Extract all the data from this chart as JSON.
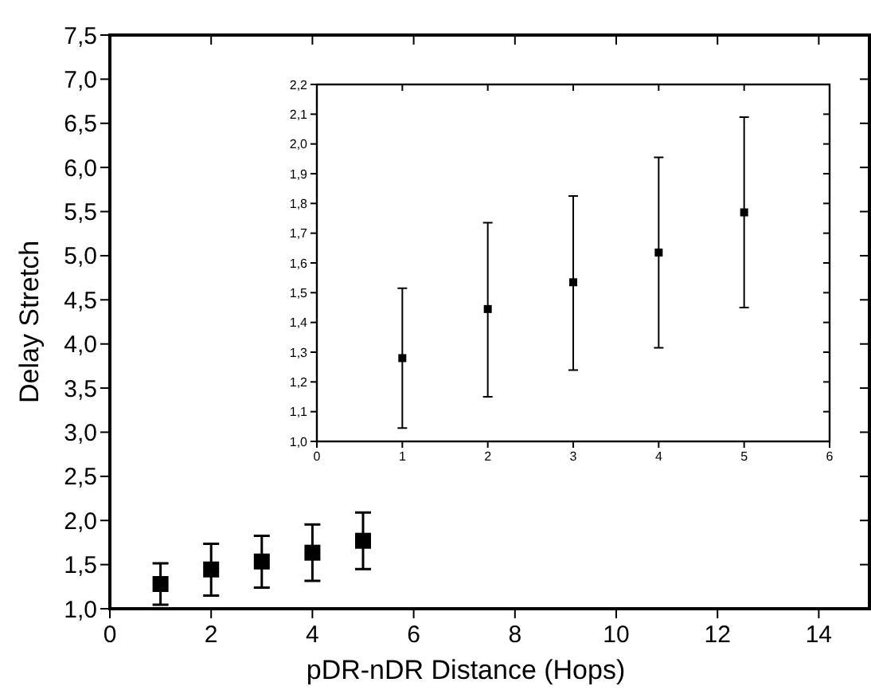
{
  "chart_data": [
    {
      "type": "scatter",
      "xlabel": "pDR-nDR Distance (Hops)",
      "ylabel": "Delay Stretch",
      "marker": "square",
      "x": [
        1,
        2,
        3,
        4,
        5
      ],
      "series": [
        {
          "color": "#000000",
          "values": [
            1.28,
            1.445,
            1.535,
            1.635,
            1.77
          ],
          "errors": [
            [
              1.045,
              1.515
            ],
            [
              1.15,
              1.735
            ],
            [
              1.24,
              1.825
            ],
            [
              1.315,
              1.955
            ],
            [
              1.45,
              2.09
            ]
          ]
        }
      ],
      "xlim": [
        0,
        15
      ],
      "xticks": [
        0,
        2,
        4,
        6,
        8,
        10,
        12,
        14
      ],
      "ylim": [
        1,
        7.5
      ],
      "yticks": [
        {
          "value": 1,
          "label": "1,0"
        },
        {
          "value": 1.5,
          "label": "1,5"
        },
        {
          "value": 2,
          "label": "2,0"
        },
        {
          "value": 2.5,
          "label": "2,5"
        },
        {
          "value": 3,
          "label": "3,0"
        },
        {
          "value": 3.5,
          "label": "3,5"
        },
        {
          "value": 4,
          "label": "4,0"
        },
        {
          "value": 4.5,
          "label": "4,5"
        },
        {
          "value": 5,
          "label": "5,0"
        },
        {
          "value": 5.5,
          "label": "5,5"
        },
        {
          "value": 6,
          "label": "6,0"
        },
        {
          "value": 6.5,
          "label": "6,5"
        },
        {
          "value": 7,
          "label": "7,0"
        },
        {
          "value": 7.5,
          "label": "7,5"
        }
      ]
    },
    {
      "type": "scatter",
      "marker": "square",
      "x": [
        1,
        2,
        3,
        4,
        5
      ],
      "series": [
        {
          "color": "#000000",
          "values": [
            1.28,
            1.445,
            1.535,
            1.635,
            1.77
          ],
          "errors": [
            [
              1.045,
              1.515
            ],
            [
              1.15,
              1.735
            ],
            [
              1.24,
              1.825
            ],
            [
              1.315,
              1.955
            ],
            [
              1.45,
              2.09
            ]
          ]
        }
      ],
      "xlim": [
        0,
        6
      ],
      "xticks": [
        0,
        1,
        2,
        3,
        4,
        5,
        6
      ],
      "ylim": [
        1,
        2.2
      ],
      "yticks": [
        {
          "value": 1,
          "label": "1,0"
        },
        {
          "value": 1.1,
          "label": "1,1"
        },
        {
          "value": 1.2,
          "label": "1,2"
        },
        {
          "value": 1.3,
          "label": "1,3"
        },
        {
          "value": 1.4,
          "label": "1,4"
        },
        {
          "value": 1.5,
          "label": "1,5"
        },
        {
          "value": 1.6,
          "label": "1,6"
        },
        {
          "value": 1.7,
          "label": "1,7"
        },
        {
          "value": 1.8,
          "label": "1,8"
        },
        {
          "value": 1.9,
          "label": "1,9"
        },
        {
          "value": 2,
          "label": "2,0"
        },
        {
          "value": 2.1,
          "label": "2,1"
        },
        {
          "value": 2.2,
          "label": "2,2"
        }
      ]
    }
  ]
}
